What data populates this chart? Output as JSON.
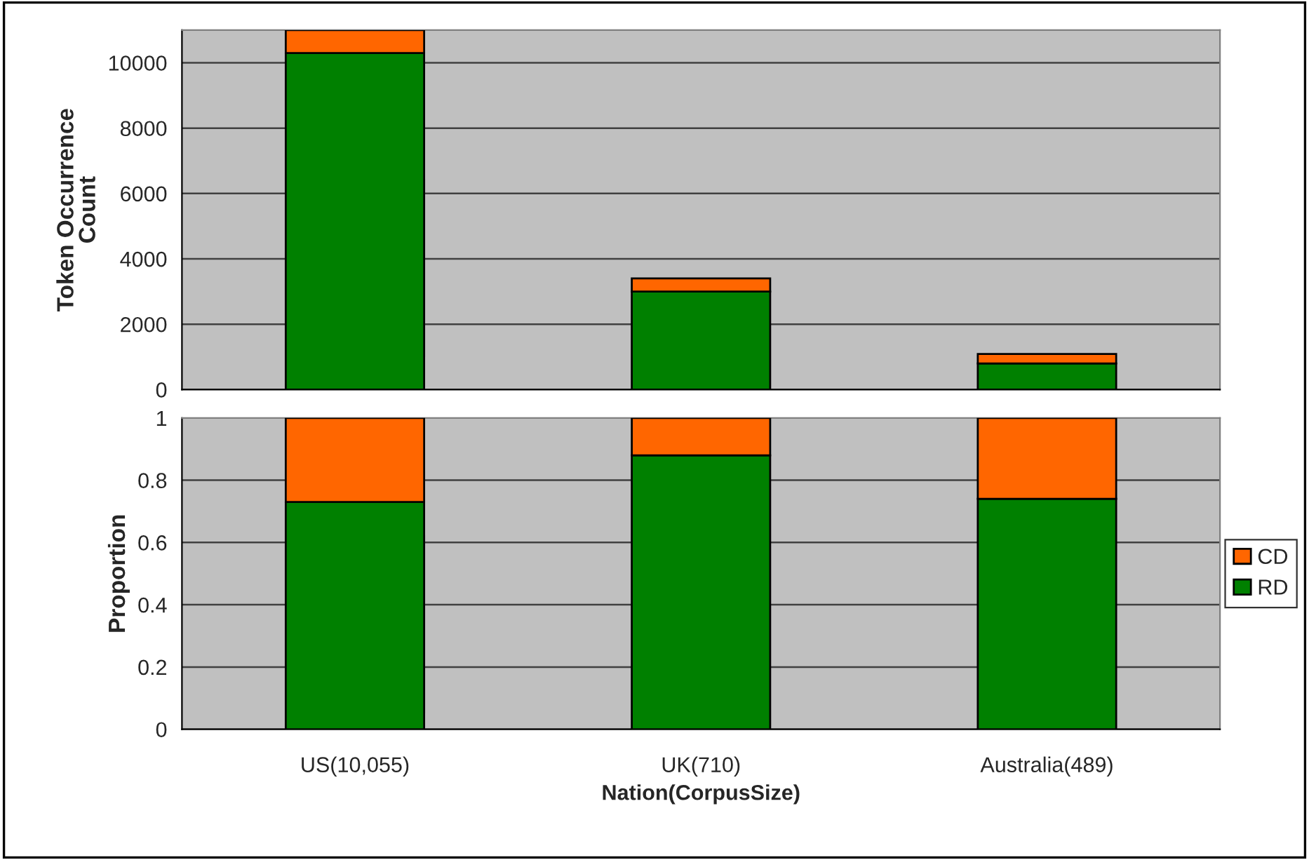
{
  "chart_data": [
    {
      "type": "bar",
      "stacked": true,
      "categories": [
        null,
        null,
        null
      ],
      "ylabel": "Token Occurrence\nCount",
      "ylim": [
        0,
        11000
      ],
      "yticks": [
        0,
        2000,
        4000,
        6000,
        8000,
        10000
      ],
      "grid": "y",
      "tick_labels": "y",
      "series": [
        {
          "color": "#008000",
          "values": [
            10300,
            3000,
            800
          ]
        },
        {
          "color": "#ff6600",
          "values": [
            700,
            400,
            290
          ]
        }
      ]
    },
    {
      "type": "bar",
      "stacked": true,
      "categories": [
        "US(10,055)",
        "UK(710)",
        "Australia(489)"
      ],
      "xlabel": "Nation(CorpusSize)",
      "ylabel": "Proportion",
      "ylim": [
        0,
        1
      ],
      "yticks": [
        0,
        0.2,
        0.4,
        0.6,
        0.8,
        1
      ],
      "grid": "y",
      "legend": "right",
      "series": [
        {
          "name": "RD",
          "color": "#008000",
          "values": [
            0.73,
            0.88,
            0.74
          ]
        },
        {
          "name": "CD",
          "color": "#ff6600",
          "values": [
            0.27,
            0.12,
            0.26
          ]
        }
      ]
    }
  ]
}
